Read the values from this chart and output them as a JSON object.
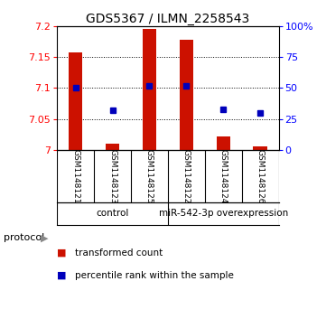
{
  "title": "GDS5367 / ILMN_2258543",
  "samples": [
    "GSM1148121",
    "GSM1148123",
    "GSM1148125",
    "GSM1148122",
    "GSM1148124",
    "GSM1148126"
  ],
  "red_values": [
    7.157,
    7.01,
    7.195,
    7.178,
    7.022,
    7.005
  ],
  "blue_percentiles": [
    50,
    32,
    52,
    52,
    33,
    30
  ],
  "y_min": 7.0,
  "y_max": 7.2,
  "y_ticks_left": [
    7.0,
    7.05,
    7.1,
    7.15,
    7.2
  ],
  "y_tick_labels_left": [
    "7",
    "7.05",
    "7.1",
    "7.15",
    "7.2"
  ],
  "right_y_ticks": [
    0,
    25,
    50,
    75,
    100
  ],
  "right_y_labels": [
    "0",
    "25",
    "50",
    "75",
    "100%"
  ],
  "group_divider": 2.5,
  "group_labels": [
    "control",
    "miR-542-3p overexpression"
  ],
  "group_centers": [
    1.0,
    4.0
  ],
  "bar_color": "#CC1100",
  "point_color": "#0000BB",
  "bar_baseline": 7.0,
  "background_color": "#ffffff",
  "plot_bg": "#ffffff",
  "label_bg": "#C8C8C8",
  "group_bg": "#90EE90",
  "legend_red_label": "transformed count",
  "legend_blue_label": "percentile rank within the sample",
  "protocol_label": "protocol"
}
